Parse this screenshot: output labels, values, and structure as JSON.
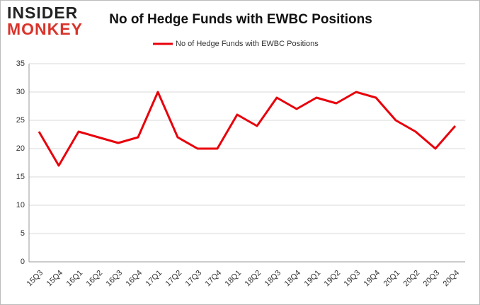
{
  "logo": {
    "top": "INSIDER",
    "bottom": "MONKEY"
  },
  "chart_data": {
    "type": "line",
    "title": "No of Hedge Funds with EWBC Positions",
    "categories": [
      "15Q3",
      "15Q4",
      "16Q1",
      "16Q2",
      "16Q3",
      "16Q4",
      "17Q1",
      "17Q2",
      "17Q3",
      "17Q4",
      "18Q1",
      "18Q2",
      "18Q3",
      "18Q4",
      "19Q1",
      "19Q2",
      "19Q3",
      "19Q4",
      "20Q1",
      "20Q2",
      "20Q3",
      "20Q4"
    ],
    "series": [
      {
        "name": "No of Hedge Funds with EWBC Positions",
        "color": "#e8000b",
        "values": [
          23,
          17,
          23,
          22,
          21,
          22,
          30,
          22,
          20,
          20,
          26,
          24,
          29,
          27,
          29,
          28,
          30,
          29,
          25,
          23,
          20,
          24
        ]
      }
    ],
    "ylim": [
      0,
      35
    ],
    "yticks": [
      0,
      5,
      10,
      15,
      20,
      25,
      30,
      35
    ],
    "grid": true
  }
}
